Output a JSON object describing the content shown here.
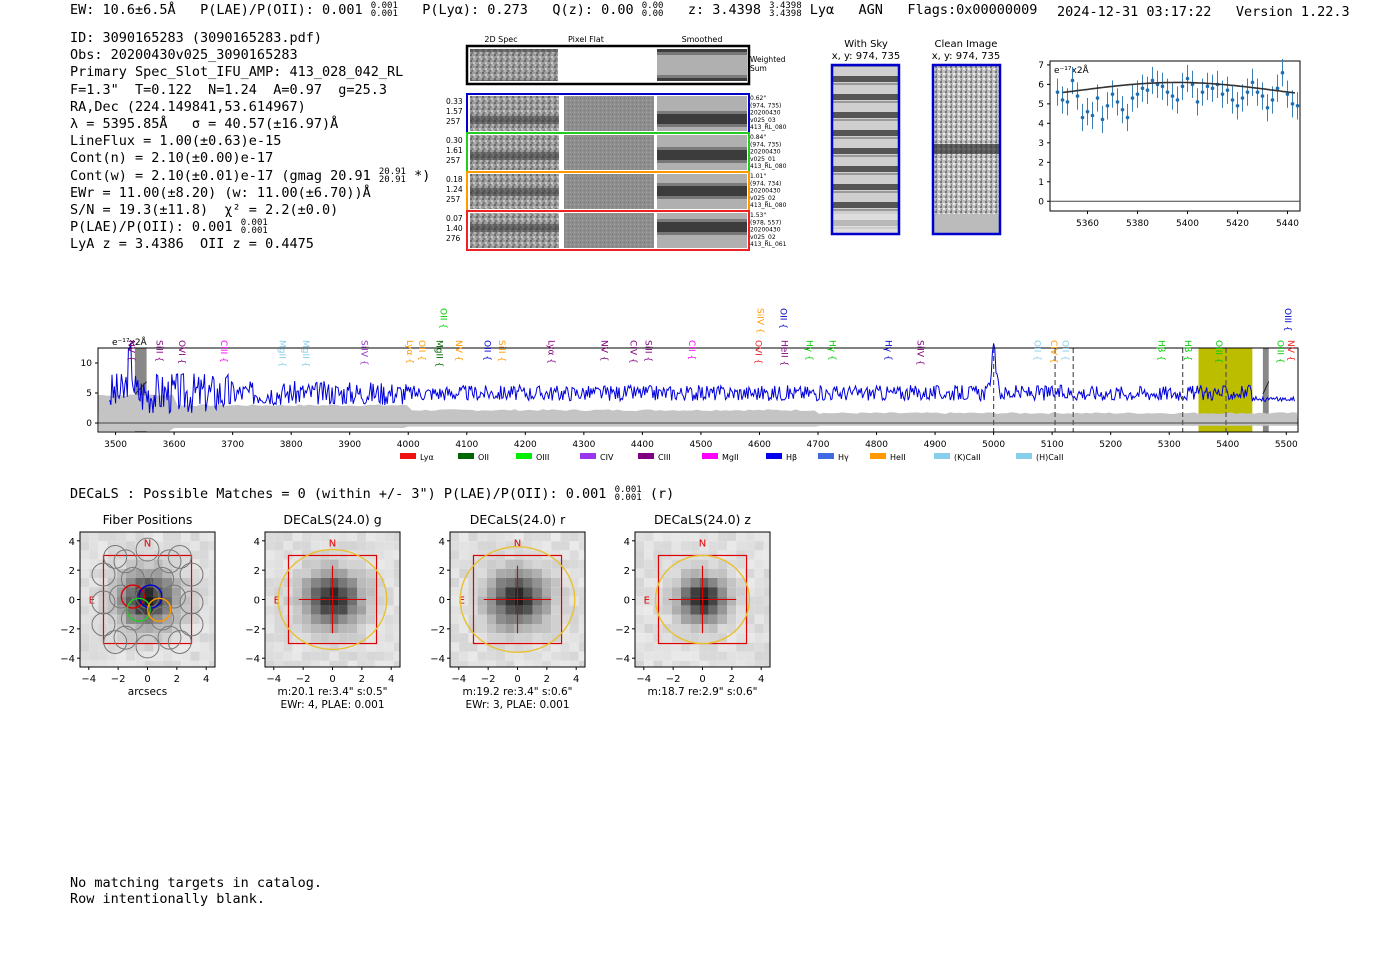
{
  "header": {
    "ew": "EW: 10.6±6.5Å",
    "plae_poii": "P(LAE)/P(OII): 0.001",
    "plae_poii_hi": "0.001",
    "plae_poii_lo": "0.001",
    "plya": "P(Lyα): 0.273",
    "qz": "Q(z): 0.00",
    "qz_hi": "0.00",
    "qz_lo": "0.00",
    "z": "z: 3.4398",
    "z_hi": "3.4398",
    "z_lo": "3.4398",
    "line": "Lyα",
    "agn": "AGN",
    "flags": "Flags:0x00000009",
    "date": "2024-12-31 03:17:22",
    "version": "Version 1.22.3"
  },
  "info": {
    "id": "ID: 3090165283 (3090165283.pdf)",
    "obs": "Obs: 20200430v025_3090165283",
    "primary": "Primary Spec_Slot_IFU_AMP: 413_028_042_RL",
    "params": "F=1.3\"  T=0.122  N=1.24  A=0.97  g=25.3",
    "radec": "RA,Dec (224.149841,53.614967)",
    "lambda": "λ = 5395.85Å   σ = 40.57(±16.97)Å",
    "lineflux": "LineFlux = 1.00(±0.63)e-15",
    "contn": "Cont(n) = 2.10(±0.00)e-17",
    "contw": "Cont(w) = 2.10(±0.01)e-17 (gmag 20.91",
    "contw_hi": "20.91",
    "contw_lo": "20.91",
    "contw_tail": "*)",
    "ewr": "EWr = 11.00(±8.20) (w: 11.00(±6.70))Å",
    "sn": "S/N = 19.3(±11.8)  χ² = 2.2(±0.0)",
    "plae": "P(LAE)/P(OII): 0.001",
    "plae_hi": "0.001",
    "plae_lo": "0.001",
    "lyaz": "LyA z = 3.4386  OII z = 0.4475"
  },
  "tiles": {
    "col_headers": [
      "2D Spec",
      "Pixel Flat",
      "Smoothed"
    ],
    "weighted": "Weighted\nSum",
    "rows": [
      {
        "vals": [
          "0.33",
          "1.57",
          "257"
        ],
        "info": [
          "0.62\"",
          "(974, 735)",
          "20200430",
          "v025_03",
          "413_RL_080"
        ],
        "color": "#0000cc"
      },
      {
        "vals": [
          "0.30",
          "1.61",
          "257"
        ],
        "info": [
          "0.84\"",
          "(974, 735)",
          "20200430",
          "v025_01",
          "413_RL_080"
        ],
        "color": "#22cc22"
      },
      {
        "vals": [
          "0.18",
          "1.24",
          "257"
        ],
        "info": [
          "1.01\"",
          "(974, 734)",
          "20200430",
          "v025_02",
          "413_RL_080"
        ],
        "color": "#ff9900"
      },
      {
        "vals": [
          "0.07",
          "1.40",
          "276"
        ],
        "info": [
          "1.53\"",
          "(978, 557)",
          "20200430",
          "v025_02",
          "413_RL_061"
        ],
        "color": "#ee2222"
      }
    ]
  },
  "cutouts": {
    "sky_title": "With Sky",
    "sky_xy": "x, y: 974, 735",
    "clean_title": "Clean Image",
    "clean_xy": "x, y: 974, 735"
  },
  "decals": {
    "title": "DECaLS : Possible Matches = 0 (within +/- 3\")  P(LAE)/P(OII): 0.001",
    "title_hi": "0.001",
    "title_lo": "0.001",
    "title_tail": "(r)",
    "panels": [
      {
        "title": "Fiber Positions",
        "xlabel": "arcsecs",
        "cap1": "",
        "cap2": ""
      },
      {
        "title": "DECaLS(24.0) g",
        "xlabel": "",
        "cap1": "m:20.1  re:3.4\"  s:0.5\"",
        "cap2": "EWr: 4, PLAE: 0.001"
      },
      {
        "title": "DECaLS(24.0) r",
        "xlabel": "",
        "cap1": "m:19.2  re:3.4\"  s:0.6\"",
        "cap2": "EWr: 3, PLAE: 0.001"
      },
      {
        "title": "DECaLS(24.0) z",
        "xlabel": "",
        "cap1": "m:18.7  re:2.9\"  s:0.6\"",
        "cap2": ""
      }
    ],
    "north": "N",
    "east": "E"
  },
  "footer": {
    "line1": "No matching targets in catalog.",
    "line2": "Row intentionally blank."
  },
  "chart_data": [
    {
      "type": "line",
      "title": "",
      "scale_label": "e⁻¹⁷x2Å",
      "xlim": [
        5345,
        5445
      ],
      "ylim": [
        -0.5,
        7.2
      ],
      "xticks": [
        5360,
        5380,
        5400,
        5420,
        5440
      ],
      "yticks": [
        0,
        1,
        2,
        3,
        4,
        5,
        6,
        7
      ],
      "series": [
        {
          "kind": "errorbar_points",
          "x": [
            5348,
            5350,
            5352,
            5354,
            5356,
            5358,
            5360,
            5362,
            5364,
            5366,
            5368,
            5370,
            5372,
            5374,
            5376,
            5378,
            5380,
            5382,
            5384,
            5386,
            5388,
            5390,
            5392,
            5394,
            5396,
            5398,
            5400,
            5402,
            5404,
            5406,
            5408,
            5410,
            5412,
            5414,
            5416,
            5418,
            5420,
            5422,
            5424,
            5426,
            5428,
            5430,
            5432,
            5434,
            5436,
            5438,
            5440,
            5442,
            5444
          ],
          "y": [
            5.6,
            5.2,
            5.1,
            6.2,
            5.4,
            4.3,
            4.6,
            4.4,
            5.3,
            4.2,
            4.9,
            5.5,
            5.1,
            4.7,
            4.3,
            5.3,
            5.5,
            5.8,
            5.7,
            6.2,
            6.0,
            5.9,
            5.6,
            5.4,
            5.2,
            5.9,
            6.3,
            6.0,
            5.1,
            5.6,
            5.9,
            5.8,
            6.0,
            5.5,
            5.7,
            5.2,
            4.9,
            5.3,
            5.6,
            6.1,
            5.6,
            5.4,
            4.8,
            5.2,
            5.8,
            6.6,
            5.5,
            5.0,
            4.9
          ],
          "yerr": 0.7
        },
        {
          "kind": "fit_curve",
          "peak": 6.1,
          "center": 5395.85,
          "sigma": 40.57,
          "base": 0.0
        }
      ]
    },
    {
      "type": "line",
      "title": "",
      "scale_label": "e⁻¹⁷x2Å",
      "xlim": [
        3470,
        5520
      ],
      "ylim": [
        -1.5,
        12.5
      ],
      "xticks": [
        3500,
        3600,
        3700,
        3800,
        3900,
        4000,
        4100,
        4200,
        4300,
        4400,
        4500,
        4600,
        4700,
        4800,
        4900,
        5000,
        5100,
        5200,
        5300,
        5400,
        5500
      ],
      "yticks": [
        0,
        5,
        10
      ],
      "line_labels": [
        {
          "name": "NV",
          "x": 3522,
          "color": "#800080"
        },
        {
          "name": "SiII",
          "x": 3570,
          "color": "#800080"
        },
        {
          "name": "OVI",
          "x": 3608,
          "color": "#800080"
        },
        {
          "name": "CIII",
          "x": 3680,
          "color": "#ff00ff"
        },
        {
          "name": "MgII",
          "x": 3780,
          "color": "#87ceeb"
        },
        {
          "name": "MgII",
          "x": 3820,
          "color": "#87ceeb"
        },
        {
          "name": "SiIV",
          "x": 3920,
          "color": "#9933cc"
        },
        {
          "name": "Lyα",
          "x": 3998,
          "color": "#ff9900"
        },
        {
          "name": "OII",
          "x": 4018,
          "color": "#ff9900"
        },
        {
          "name": "MgII",
          "x": 4048,
          "color": "#006600"
        },
        {
          "name": "OII",
          "x": 4055,
          "color": "#00cc00",
          "high": true
        },
        {
          "name": "NV",
          "x": 4082,
          "color": "#ff9900"
        },
        {
          "name": "OII",
          "x": 4130,
          "color": "#0000cc"
        },
        {
          "name": "SiII",
          "x": 4155,
          "color": "#ff9900"
        },
        {
          "name": "Lyα",
          "x": 4240,
          "color": "#800080"
        },
        {
          "name": "NV",
          "x": 4330,
          "color": "#800080"
        },
        {
          "name": "CIV",
          "x": 4380,
          "color": "#800080"
        },
        {
          "name": "SiII",
          "x": 4405,
          "color": "#800080"
        },
        {
          "name": "CII",
          "x": 4480,
          "color": "#ff00ff"
        },
        {
          "name": "OVI",
          "x": 4593,
          "color": "#ee2222"
        },
        {
          "name": "SiIV",
          "x": 4597,
          "color": "#ff9900",
          "high": true
        },
        {
          "name": "OII",
          "x": 4636,
          "color": "#0000cc",
          "high": true
        },
        {
          "name": "HeII",
          "x": 4638,
          "color": "#800080"
        },
        {
          "name": "Hγ",
          "x": 4680,
          "color": "#00cc00"
        },
        {
          "name": "Hγ",
          "x": 4720,
          "color": "#00cc00"
        },
        {
          "name": "Hγ",
          "x": 4815,
          "color": "#0000cc"
        },
        {
          "name": "SiIV",
          "x": 4870,
          "color": "#800080"
        },
        {
          "name": "OII",
          "x": 5070,
          "color": "#87ceeb"
        },
        {
          "name": "CIV",
          "x": 5098,
          "color": "#ff9900"
        },
        {
          "name": "OII",
          "x": 5118,
          "color": "#87ceeb"
        },
        {
          "name": "Hβ",
          "x": 5282,
          "color": "#00cc00"
        },
        {
          "name": "Hβ",
          "x": 5327,
          "color": "#00cc00"
        },
        {
          "name": "OIII",
          "x": 5380,
          "color": "#00cc00"
        },
        {
          "name": "OIII",
          "x": 5485,
          "color": "#00cc00"
        },
        {
          "name": "NV",
          "x": 5503,
          "color": "#ee2222"
        },
        {
          "name": "OIII",
          "x": 5498,
          "color": "#0000cc",
          "high": true
        }
      ],
      "dashed_lines": [
        5000,
        5105,
        5136,
        5323,
        5397
      ],
      "highlight": [
        5350,
        5442
      ],
      "hatched": [
        [
          3533,
          3553
        ],
        [
          5460,
          5470
        ]
      ],
      "peaks": [
        {
          "x": 3525,
          "y": 11
        },
        {
          "x": 5000,
          "y": 12
        }
      ],
      "baseline": 5.0,
      "legend": [
        {
          "name": "Lyα",
          "color": "#ee1111"
        },
        {
          "name": "OII",
          "color": "#006600"
        },
        {
          "name": "OIII",
          "color": "#00ee00"
        },
        {
          "name": "CIV",
          "color": "#9933ee"
        },
        {
          "name": "CIII",
          "color": "#800080"
        },
        {
          "name": "MgII",
          "color": "#ff00ff"
        },
        {
          "name": "Hβ",
          "color": "#0000ee"
        },
        {
          "name": "Hγ",
          "color": "#4169e1"
        },
        {
          "name": "HeII",
          "color": "#ff9900"
        },
        {
          "name": "(K)CaII",
          "color": "#87ceeb"
        },
        {
          "name": "(H)CaII",
          "color": "#87ceeb"
        }
      ]
    },
    {
      "type": "heatmap",
      "panels": [
        "Fiber Positions",
        "DECaLS(24.0) g",
        "DECaLS(24.0) r",
        "DECaLS(24.0) z"
      ],
      "xlim": [
        -4.6,
        4.6
      ],
      "ylim": [
        -4.6,
        4.6
      ],
      "ticks": [
        -4,
        -2,
        0,
        2,
        4
      ],
      "aperture_box": [
        -3,
        3
      ],
      "ellipses": [
        {
          "a": 3.7,
          "b": 3.4
        },
        {
          "a": 3.9,
          "b": 3.6
        },
        {
          "a": 3.2,
          "b": 3.0
        }
      ]
    }
  ]
}
